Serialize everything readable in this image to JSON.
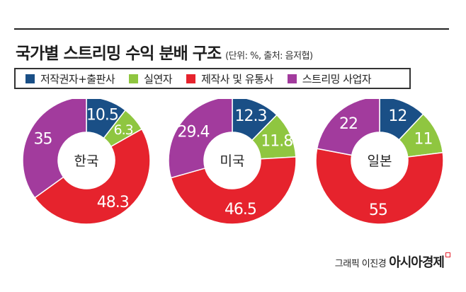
{
  "title": "국가별 스트리밍 수익 분배 구조",
  "subtitle": "(단위: %, 출처: 음저협)",
  "credit": {
    "byline": "그래픽 이진경",
    "brand": "아시아경제"
  },
  "colors": {
    "저작권자+출판사": "#1a4f86",
    "실연자": "#8fc640",
    "제작사 및 유통사": "#e6232d",
    "스트리밍 사업자": "#a23b9d"
  },
  "chart_data": {
    "type": "pie",
    "style": "donut",
    "legend": [
      "저작권자+출판사",
      "실연자",
      "제작사 및 유통사",
      "스트리밍 사업자"
    ],
    "charts": [
      {
        "name": "한국",
        "values": [
          10.5,
          6.3,
          48.3,
          35
        ],
        "labels": [
          "10.5",
          "6.3",
          "48.3",
          "35"
        ]
      },
      {
        "name": "미국",
        "values": [
          12.3,
          11.8,
          46.5,
          29.4
        ],
        "labels": [
          "12.3",
          "11.8",
          "46.5",
          "29.4"
        ]
      },
      {
        "name": "일본",
        "values": [
          12,
          11,
          55,
          22
        ],
        "labels": [
          "12",
          "11",
          "55",
          "22"
        ]
      }
    ]
  }
}
